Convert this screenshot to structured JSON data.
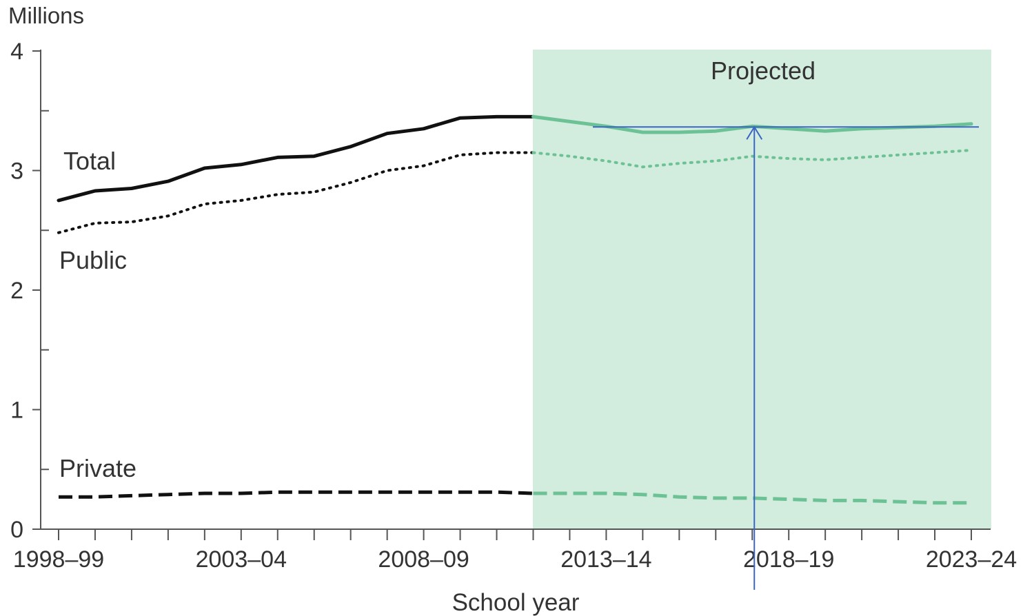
{
  "chart_data": {
    "type": "line",
    "ylabel": "Millions",
    "xlabel": "School year",
    "ylim": [
      0,
      4
    ],
    "y_ticks": [
      "0",
      "1",
      "2",
      "3",
      "4"
    ],
    "x_tick_labels": [
      {
        "index": 0,
        "label": "1998–99"
      },
      {
        "index": 5,
        "label": "2003–04"
      },
      {
        "index": 10,
        "label": "2008–09"
      },
      {
        "index": 15,
        "label": "2013–14"
      },
      {
        "index": 20,
        "label": "2018–19"
      },
      {
        "index": 25,
        "label": "2023–24"
      }
    ],
    "projected_label": "Projected",
    "projected_start_index": 13,
    "x_count": 26,
    "series": [
      {
        "name": "Total",
        "style": "solid",
        "values": [
          2.75,
          2.83,
          2.85,
          2.91,
          3.02,
          3.05,
          3.11,
          3.12,
          3.2,
          3.31,
          3.35,
          3.44,
          3.45,
          3.45,
          3.41,
          3.37,
          3.32,
          3.32,
          3.33,
          3.37,
          3.35,
          3.33,
          3.35,
          3.36,
          3.37,
          3.39
        ]
      },
      {
        "name": "Public",
        "style": "dotted",
        "values": [
          2.48,
          2.56,
          2.57,
          2.62,
          2.72,
          2.75,
          2.8,
          2.82,
          2.9,
          3.0,
          3.04,
          3.13,
          3.15,
          3.15,
          3.12,
          3.08,
          3.03,
          3.06,
          3.08,
          3.12,
          3.1,
          3.09,
          3.11,
          3.13,
          3.15,
          3.17
        ]
      },
      {
        "name": "Private",
        "style": "dashed",
        "values": [
          0.27,
          0.27,
          0.28,
          0.29,
          0.3,
          0.3,
          0.31,
          0.31,
          0.31,
          0.31,
          0.31,
          0.31,
          0.31,
          0.3,
          0.3,
          0.3,
          0.29,
          0.27,
          0.26,
          0.26,
          0.25,
          0.24,
          0.24,
          0.23,
          0.22,
          0.22
        ]
      }
    ],
    "colors": {
      "historical": "#111111",
      "projected": "#6cc294",
      "projected_band": "#d2ecdd",
      "axis": "#555555",
      "annotation": "#3a66c4"
    },
    "annotation_point": {
      "index": 19,
      "value": 3.37
    }
  }
}
